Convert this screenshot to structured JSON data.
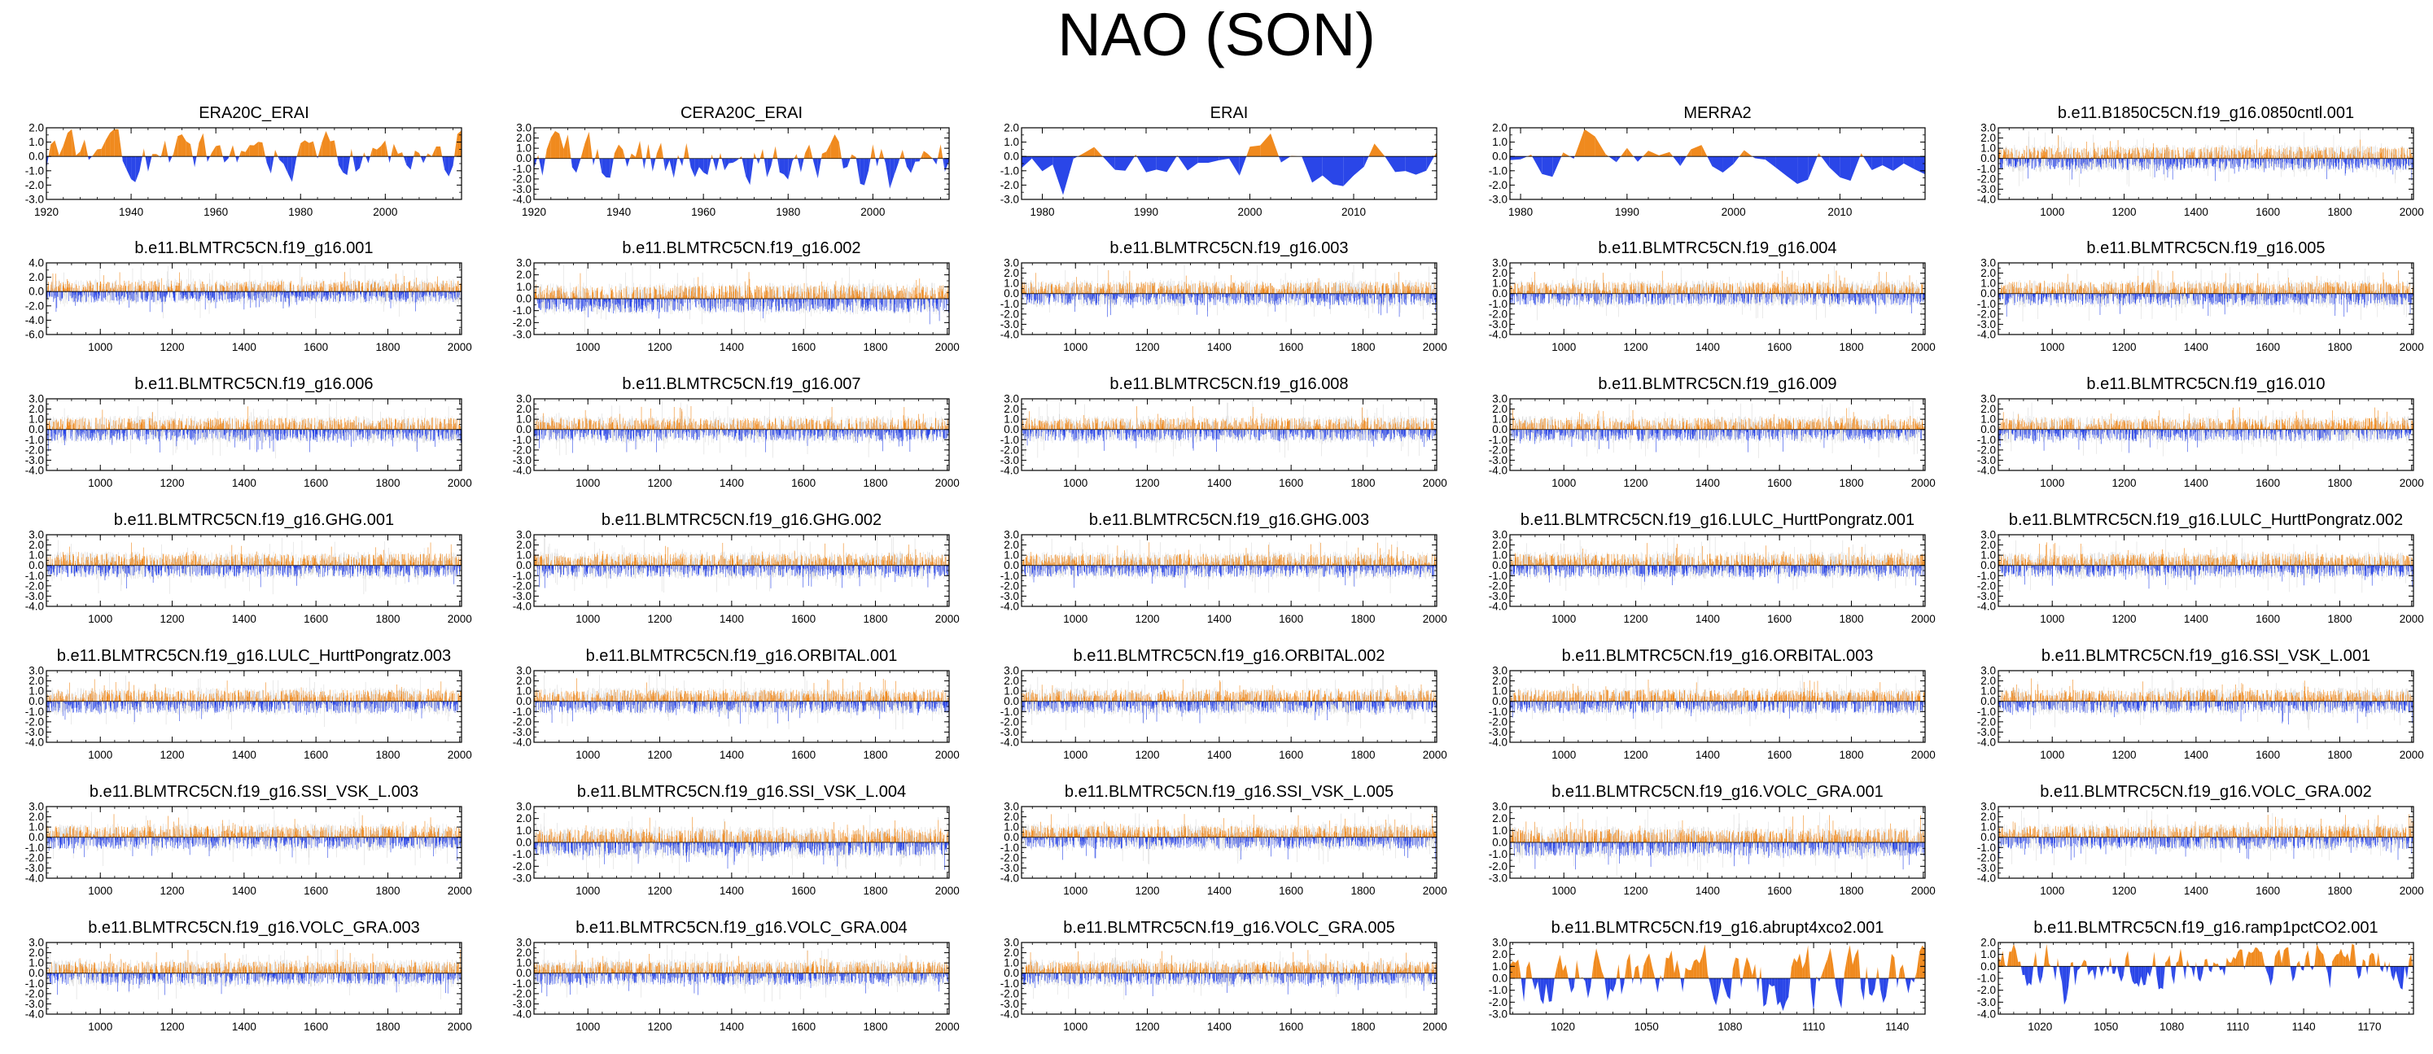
{
  "page": {
    "title": "NAO (SON)"
  },
  "colors": {
    "positive": "#f08a1e",
    "negative": "#2a46e8",
    "axis": "#000000",
    "zero_line": "#000000",
    "variability": "#b0b0b0"
  },
  "chart_data": [
    {
      "type": "area",
      "title": "ERA20C_ERAI",
      "style": "filled",
      "seed": 11,
      "xlim": [
        1920,
        2018
      ],
      "xticks": [
        1920,
        1940,
        1960,
        1980,
        2000
      ],
      "ylim": [
        -3,
        2
      ],
      "yticks": [
        "2.0",
        "1.0",
        "0.0",
        "-1.0",
        "-2.0",
        "-3.0"
      ]
    },
    {
      "type": "area",
      "title": "CERA20C_ERAI",
      "style": "filled",
      "seed": 12,
      "xlim": [
        1920,
        2018
      ],
      "xticks": [
        1920,
        1940,
        1960,
        1980,
        2000
      ],
      "ylim": [
        -4,
        3
      ],
      "yticks": [
        "3.0",
        "2.0",
        "1.0",
        "0.0",
        "-1.0",
        "-2.0",
        "-3.0",
        "-4.0"
      ]
    },
    {
      "type": "area",
      "title": "ERAI",
      "style": "filled",
      "seed": 13,
      "xlim": [
        1978,
        2018
      ],
      "xticks": [
        1980,
        1990,
        2000,
        2010
      ],
      "ylim": [
        -3,
        2
      ],
      "yticks": [
        "2.0",
        "1.0",
        "0.0",
        "-1.0",
        "-2.0",
        "-3.0"
      ]
    },
    {
      "type": "area",
      "title": "MERRA2",
      "style": "filled",
      "seed": 14,
      "xlim": [
        1979,
        2018
      ],
      "xticks": [
        1980,
        1990,
        2000,
        2010
      ],
      "ylim": [
        -3,
        2
      ],
      "yticks": [
        "2.0",
        "1.0",
        "0.0",
        "-1.0",
        "-2.0",
        "-3.0"
      ]
    },
    {
      "type": "area",
      "title": "b.e11.B1850C5CN.f19_g16.0850cntl.001",
      "style": "dense",
      "seed": 15,
      "xlim": [
        850,
        2005
      ],
      "xticks": [
        1000,
        1200,
        1400,
        1600,
        1800,
        2000
      ],
      "ylim": [
        -4,
        3
      ],
      "yticks": [
        "3.0",
        "2.0",
        "1.0",
        "0.0",
        "-1.0",
        "-2.0",
        "-3.0",
        "-4.0"
      ]
    },
    {
      "type": "area",
      "title": "b.e11.BLMTRC5CN.f19_g16.001",
      "style": "dense",
      "seed": 21,
      "xlim": [
        850,
        2005
      ],
      "xticks": [
        1000,
        1200,
        1400,
        1600,
        1800,
        2000
      ],
      "ylim": [
        -6,
        4
      ],
      "yticks": [
        "4.0",
        "2.0",
        "0.0",
        "-2.0",
        "-4.0",
        "-6.0"
      ]
    },
    {
      "type": "area",
      "title": "b.e11.BLMTRC5CN.f19_g16.002",
      "style": "dense",
      "seed": 22,
      "xlim": [
        850,
        2005
      ],
      "xticks": [
        1000,
        1200,
        1400,
        1600,
        1800,
        2000
      ],
      "ylim": [
        -3,
        3
      ],
      "yticks": [
        "3.0",
        "2.0",
        "1.0",
        "0.0",
        "-1.0",
        "-2.0",
        "-3.0"
      ]
    },
    {
      "type": "area",
      "title": "b.e11.BLMTRC5CN.f19_g16.003",
      "style": "dense",
      "seed": 23,
      "xlim": [
        850,
        2005
      ],
      "xticks": [
        1000,
        1200,
        1400,
        1600,
        1800,
        2000
      ],
      "ylim": [
        -4,
        3
      ],
      "yticks": [
        "3.0",
        "2.0",
        "1.0",
        "0.0",
        "-1.0",
        "-2.0",
        "-3.0",
        "-4.0"
      ]
    },
    {
      "type": "area",
      "title": "b.e11.BLMTRC5CN.f19_g16.004",
      "style": "dense",
      "seed": 24,
      "xlim": [
        850,
        2005
      ],
      "xticks": [
        1000,
        1200,
        1400,
        1600,
        1800,
        2000
      ],
      "ylim": [
        -4,
        3
      ],
      "yticks": [
        "3.0",
        "2.0",
        "1.0",
        "0.0",
        "-1.0",
        "-2.0",
        "-3.0",
        "-4.0"
      ]
    },
    {
      "type": "area",
      "title": "b.e11.BLMTRC5CN.f19_g16.005",
      "style": "dense",
      "seed": 25,
      "xlim": [
        850,
        2005
      ],
      "xticks": [
        1000,
        1200,
        1400,
        1600,
        1800,
        2000
      ],
      "ylim": [
        -4,
        3
      ],
      "yticks": [
        "3.0",
        "2.0",
        "1.0",
        "0.0",
        "-1.0",
        "-2.0",
        "-3.0",
        "-4.0"
      ]
    },
    {
      "type": "area",
      "title": "b.e11.BLMTRC5CN.f19_g16.006",
      "style": "dense",
      "seed": 31,
      "xlim": [
        850,
        2005
      ],
      "xticks": [
        1000,
        1200,
        1400,
        1600,
        1800,
        2000
      ],
      "ylim": [
        -4,
        3
      ],
      "yticks": [
        "3.0",
        "2.0",
        "1.0",
        "0.0",
        "-1.0",
        "-2.0",
        "-3.0",
        "-4.0"
      ]
    },
    {
      "type": "area",
      "title": "b.e11.BLMTRC5CN.f19_g16.007",
      "style": "dense",
      "seed": 32,
      "xlim": [
        850,
        2005
      ],
      "xticks": [
        1000,
        1200,
        1400,
        1600,
        1800,
        2000
      ],
      "ylim": [
        -4,
        3
      ],
      "yticks": [
        "3.0",
        "2.0",
        "1.0",
        "0.0",
        "-1.0",
        "-2.0",
        "-3.0",
        "-4.0"
      ]
    },
    {
      "type": "area",
      "title": "b.e11.BLMTRC5CN.f19_g16.008",
      "style": "dense",
      "seed": 33,
      "xlim": [
        850,
        2005
      ],
      "xticks": [
        1000,
        1200,
        1400,
        1600,
        1800,
        2000
      ],
      "ylim": [
        -4,
        3
      ],
      "yticks": [
        "3.0",
        "2.0",
        "1.0",
        "0.0",
        "-1.0",
        "-2.0",
        "-3.0",
        "-4.0"
      ]
    },
    {
      "type": "area",
      "title": "b.e11.BLMTRC5CN.f19_g16.009",
      "style": "dense",
      "seed": 34,
      "xlim": [
        850,
        2005
      ],
      "xticks": [
        1000,
        1200,
        1400,
        1600,
        1800,
        2000
      ],
      "ylim": [
        -4,
        3
      ],
      "yticks": [
        "3.0",
        "2.0",
        "1.0",
        "0.0",
        "-1.0",
        "-2.0",
        "-3.0",
        "-4.0"
      ]
    },
    {
      "type": "area",
      "title": "b.e11.BLMTRC5CN.f19_g16.010",
      "style": "dense",
      "seed": 35,
      "xlim": [
        850,
        2005
      ],
      "xticks": [
        1000,
        1200,
        1400,
        1600,
        1800,
        2000
      ],
      "ylim": [
        -4,
        3
      ],
      "yticks": [
        "3.0",
        "2.0",
        "1.0",
        "0.0",
        "-1.0",
        "-2.0",
        "-3.0",
        "-4.0"
      ]
    },
    {
      "type": "area",
      "title": "b.e11.BLMTRC5CN.f19_g16.GHG.001",
      "style": "dense",
      "seed": 41,
      "xlim": [
        850,
        2005
      ],
      "xticks": [
        1000,
        1200,
        1400,
        1600,
        1800,
        2000
      ],
      "ylim": [
        -4,
        3
      ],
      "yticks": [
        "3.0",
        "2.0",
        "1.0",
        "0.0",
        "-1.0",
        "-2.0",
        "-3.0",
        "-4.0"
      ]
    },
    {
      "type": "area",
      "title": "b.e11.BLMTRC5CN.f19_g16.GHG.002",
      "style": "dense",
      "seed": 42,
      "xlim": [
        850,
        2005
      ],
      "xticks": [
        1000,
        1200,
        1400,
        1600,
        1800,
        2000
      ],
      "ylim": [
        -4,
        3
      ],
      "yticks": [
        "3.0",
        "2.0",
        "1.0",
        "0.0",
        "-1.0",
        "-2.0",
        "-3.0",
        "-4.0"
      ]
    },
    {
      "type": "area",
      "title": "b.e11.BLMTRC5CN.f19_g16.GHG.003",
      "style": "dense",
      "seed": 43,
      "xlim": [
        850,
        2005
      ],
      "xticks": [
        1000,
        1200,
        1400,
        1600,
        1800,
        2000
      ],
      "ylim": [
        -4,
        3
      ],
      "yticks": [
        "3.0",
        "2.0",
        "1.0",
        "0.0",
        "-1.0",
        "-2.0",
        "-3.0",
        "-4.0"
      ]
    },
    {
      "type": "area",
      "title": "b.e11.BLMTRC5CN.f19_g16.LULC_HurttPongratz.001",
      "style": "dense",
      "seed": 44,
      "xlim": [
        850,
        2005
      ],
      "xticks": [
        1000,
        1200,
        1400,
        1600,
        1800,
        2000
      ],
      "ylim": [
        -4,
        3
      ],
      "yticks": [
        "3.0",
        "2.0",
        "1.0",
        "0.0",
        "-1.0",
        "-2.0",
        "-3.0",
        "-4.0"
      ]
    },
    {
      "type": "area",
      "title": "b.e11.BLMTRC5CN.f19_g16.LULC_HurttPongratz.002",
      "style": "dense",
      "seed": 45,
      "xlim": [
        850,
        2005
      ],
      "xticks": [
        1000,
        1200,
        1400,
        1600,
        1800,
        2000
      ],
      "ylim": [
        -4,
        3
      ],
      "yticks": [
        "3.0",
        "2.0",
        "1.0",
        "0.0",
        "-1.0",
        "-2.0",
        "-3.0",
        "-4.0"
      ]
    },
    {
      "type": "area",
      "title": "b.e11.BLMTRC5CN.f19_g16.LULC_HurttPongratz.003",
      "style": "dense",
      "seed": 51,
      "xlim": [
        850,
        2005
      ],
      "xticks": [
        1000,
        1200,
        1400,
        1600,
        1800,
        2000
      ],
      "ylim": [
        -4,
        3
      ],
      "yticks": [
        "3.0",
        "2.0",
        "1.0",
        "0.0",
        "-1.0",
        "-2.0",
        "-3.0",
        "-4.0"
      ]
    },
    {
      "type": "area",
      "title": "b.e11.BLMTRC5CN.f19_g16.ORBITAL.001",
      "style": "dense",
      "seed": 52,
      "xlim": [
        850,
        2005
      ],
      "xticks": [
        1000,
        1200,
        1400,
        1600,
        1800,
        2000
      ],
      "ylim": [
        -4,
        3
      ],
      "yticks": [
        "3.0",
        "2.0",
        "1.0",
        "0.0",
        "-1.0",
        "-2.0",
        "-3.0",
        "-4.0"
      ]
    },
    {
      "type": "area",
      "title": "b.e11.BLMTRC5CN.f19_g16.ORBITAL.002",
      "style": "dense",
      "seed": 53,
      "xlim": [
        850,
        2005
      ],
      "xticks": [
        1000,
        1200,
        1400,
        1600,
        1800,
        2000
      ],
      "ylim": [
        -4,
        3
      ],
      "yticks": [
        "3.0",
        "2.0",
        "1.0",
        "0.0",
        "-1.0",
        "-2.0",
        "-3.0",
        "-4.0"
      ]
    },
    {
      "type": "area",
      "title": "b.e11.BLMTRC5CN.f19_g16.ORBITAL.003",
      "style": "dense",
      "seed": 54,
      "xlim": [
        850,
        2005
      ],
      "xticks": [
        1000,
        1200,
        1400,
        1600,
        1800,
        2000
      ],
      "ylim": [
        -4,
        3
      ],
      "yticks": [
        "3.0",
        "2.0",
        "1.0",
        "0.0",
        "-1.0",
        "-2.0",
        "-3.0",
        "-4.0"
      ]
    },
    {
      "type": "area",
      "title": "b.e11.BLMTRC5CN.f19_g16.SSI_VSK_L.001",
      "style": "dense",
      "seed": 55,
      "xlim": [
        850,
        2005
      ],
      "xticks": [
        1000,
        1200,
        1400,
        1600,
        1800,
        2000
      ],
      "ylim": [
        -4,
        3
      ],
      "yticks": [
        "3.0",
        "2.0",
        "1.0",
        "0.0",
        "-1.0",
        "-2.0",
        "-3.0",
        "-4.0"
      ]
    },
    {
      "type": "area",
      "title": "b.e11.BLMTRC5CN.f19_g16.SSI_VSK_L.003",
      "style": "dense",
      "seed": 61,
      "xlim": [
        850,
        2005
      ],
      "xticks": [
        1000,
        1200,
        1400,
        1600,
        1800,
        2000
      ],
      "ylim": [
        -4,
        3
      ],
      "yticks": [
        "3.0",
        "2.0",
        "1.0",
        "0.0",
        "-1.0",
        "-2.0",
        "-3.0",
        "-4.0"
      ]
    },
    {
      "type": "area",
      "title": "b.e11.BLMTRC5CN.f19_g16.SSI_VSK_L.004",
      "style": "dense",
      "seed": 62,
      "xlim": [
        850,
        2005
      ],
      "xticks": [
        1000,
        1200,
        1400,
        1600,
        1800,
        2000
      ],
      "ylim": [
        -3,
        3
      ],
      "yticks": [
        "3.0",
        "2.0",
        "1.0",
        "0.0",
        "-1.0",
        "-2.0",
        "-3.0"
      ]
    },
    {
      "type": "area",
      "title": "b.e11.BLMTRC5CN.f19_g16.SSI_VSK_L.005",
      "style": "dense",
      "seed": 63,
      "xlim": [
        850,
        2005
      ],
      "xticks": [
        1000,
        1200,
        1400,
        1600,
        1800,
        2000
      ],
      "ylim": [
        -4,
        3
      ],
      "yticks": [
        "3.0",
        "2.0",
        "1.0",
        "0.0",
        "-1.0",
        "-2.0",
        "-3.0",
        "-4.0"
      ]
    },
    {
      "type": "area",
      "title": "b.e11.BLMTRC5CN.f19_g16.VOLC_GRA.001",
      "style": "dense",
      "seed": 64,
      "xlim": [
        850,
        2005
      ],
      "xticks": [
        1000,
        1200,
        1400,
        1600,
        1800,
        2000
      ],
      "ylim": [
        -3,
        3
      ],
      "yticks": [
        "3.0",
        "2.0",
        "1.0",
        "0.0",
        "-1.0",
        "-2.0",
        "-3.0"
      ]
    },
    {
      "type": "area",
      "title": "b.e11.BLMTRC5CN.f19_g16.VOLC_GRA.002",
      "style": "dense",
      "seed": 65,
      "xlim": [
        850,
        2005
      ],
      "xticks": [
        1000,
        1200,
        1400,
        1600,
        1800,
        2000
      ],
      "ylim": [
        -4,
        3
      ],
      "yticks": [
        "3.0",
        "2.0",
        "1.0",
        "0.0",
        "-1.0",
        "-2.0",
        "-3.0",
        "-4.0"
      ]
    },
    {
      "type": "area",
      "title": "b.e11.BLMTRC5CN.f19_g16.VOLC_GRA.003",
      "style": "dense",
      "seed": 71,
      "xlim": [
        850,
        2005
      ],
      "xticks": [
        1000,
        1200,
        1400,
        1600,
        1800,
        2000
      ],
      "ylim": [
        -4,
        3
      ],
      "yticks": [
        "3.0",
        "2.0",
        "1.0",
        "0.0",
        "-1.0",
        "-2.0",
        "-3.0",
        "-4.0"
      ]
    },
    {
      "type": "area",
      "title": "b.e11.BLMTRC5CN.f19_g16.VOLC_GRA.004",
      "style": "dense",
      "seed": 72,
      "xlim": [
        850,
        2005
      ],
      "xticks": [
        1000,
        1200,
        1400,
        1600,
        1800,
        2000
      ],
      "ylim": [
        -4,
        3
      ],
      "yticks": [
        "3.0",
        "2.0",
        "1.0",
        "0.0",
        "-1.0",
        "-2.0",
        "-3.0",
        "-4.0"
      ]
    },
    {
      "type": "area",
      "title": "b.e11.BLMTRC5CN.f19_g16.VOLC_GRA.005",
      "style": "dense",
      "seed": 73,
      "xlim": [
        850,
        2005
      ],
      "xticks": [
        1000,
        1200,
        1400,
        1600,
        1800,
        2000
      ],
      "ylim": [
        -4,
        3
      ],
      "yticks": [
        "3.0",
        "2.0",
        "1.0",
        "0.0",
        "-1.0",
        "-2.0",
        "-3.0",
        "-4.0"
      ]
    },
    {
      "type": "area",
      "title": "b.e11.BLMTRC5CN.f19_g16.abrupt4xco2.001",
      "style": "filled",
      "seed": 74,
      "xlim": [
        1001,
        1150
      ],
      "xticks": [
        1020,
        1050,
        1080,
        1110,
        1140
      ],
      "ylim": [
        -3,
        3
      ],
      "yticks": [
        "3.0",
        "2.0",
        "1.0",
        "0.0",
        "-1.0",
        "-2.0",
        "-3.0"
      ]
    },
    {
      "type": "area",
      "title": "b.e11.BLMTRC5CN.f19_g16.ramp1pctCO2.001",
      "style": "filled",
      "seed": 75,
      "xlim": [
        1001,
        1190
      ],
      "xticks": [
        1020,
        1050,
        1080,
        1110,
        1140,
        1170
      ],
      "ylim": [
        -4,
        2
      ],
      "yticks": [
        "2.0",
        "1.0",
        "0.0",
        "-1.0",
        "-2.0",
        "-3.0",
        "-4.0"
      ]
    }
  ]
}
